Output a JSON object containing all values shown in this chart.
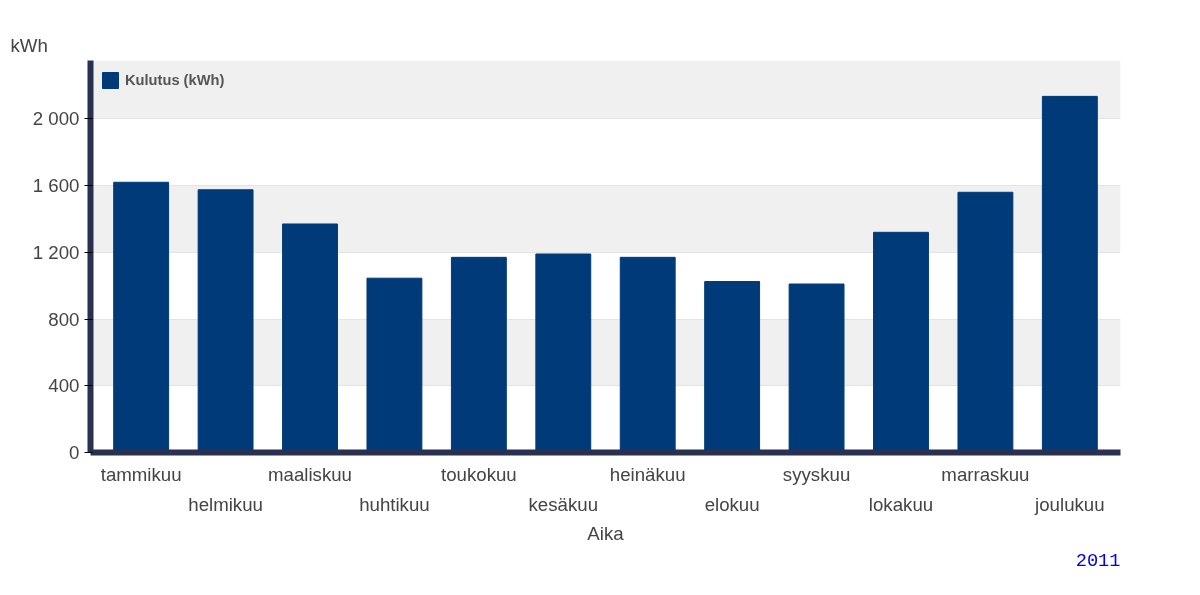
{
  "chart_data": {
    "type": "bar",
    "ylabel": "kWh",
    "xlabel": "Aika",
    "categories": [
      "tammikuu",
      "helmikuu",
      "maaliskuu",
      "huhtikuu",
      "toukokuu",
      "kesäkuu",
      "heinäkuu",
      "elokuu",
      "syyskuu",
      "lokakuu",
      "marraskuu",
      "joulukuu"
    ],
    "series": [
      {
        "name": "Kulutus (kWh)",
        "color": "#003a78",
        "values": [
          1620,
          1575,
          1370,
          1045,
          1170,
          1190,
          1170,
          1025,
          1010,
          1320,
          1560,
          2135
        ]
      }
    ],
    "ylim": [
      0,
      2350
    ],
    "yticks": [
      0,
      400,
      800,
      {
        "value": 1200,
        "label": "1 200"
      },
      {
        "value": 1600,
        "label": "1 600"
      },
      {
        "value": 2000,
        "label": "2 000"
      }
    ],
    "grid": "y",
    "legend": "top left",
    "annotations": [
      "2011"
    ]
  }
}
